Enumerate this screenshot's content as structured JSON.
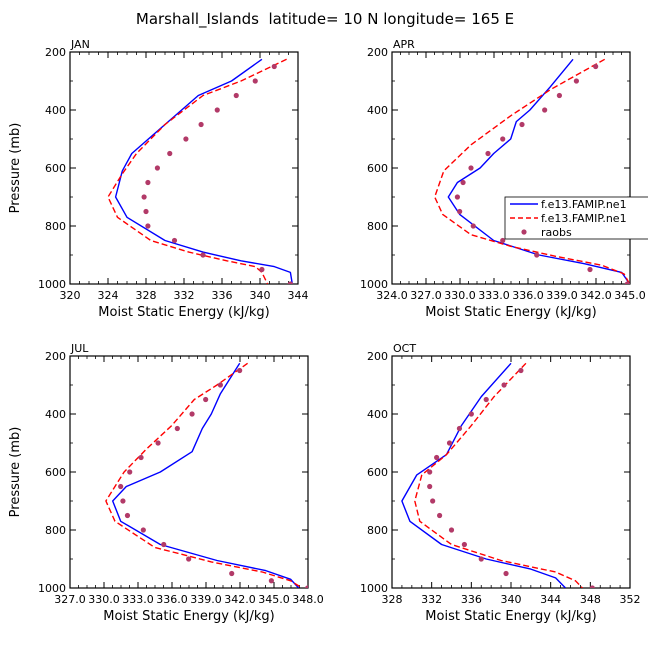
{
  "page_title": "Marshall_Islands  latitude= 10 N longitude= 165 E",
  "colors": {
    "model1": "#0000ff",
    "model2": "#ff0000",
    "obs": "#b23a68",
    "axis": "#000000"
  },
  "legend": {
    "entries": [
      {
        "label": "f.e13.FAMIP.ne1",
        "style": "solid",
        "color": "#0000ff"
      },
      {
        "label": "f.e13.FAMIP.ne1",
        "style": "dashed",
        "color": "#ff0000"
      },
      {
        "label": "raobs",
        "style": "marker",
        "color": "#b23a68"
      }
    ]
  },
  "chart_data": [
    {
      "type": "line",
      "title": "JAN",
      "xlabel": "Moist Static Energy (kJ/kg)",
      "ylabel": "Pressure (mb)",
      "xlim": [
        320,
        344
      ],
      "ylim": [
        1000,
        200
      ],
      "xticks": [
        320,
        324,
        328,
        332,
        336,
        340,
        344
      ],
      "xtick_labels": [
        "320",
        "324",
        "328",
        "332",
        "336",
        "340",
        "344"
      ],
      "yticks": [
        200,
        400,
        600,
        800,
        1000
      ],
      "ytick_labels": [
        "200",
        "400",
        "600",
        "800",
        "1000"
      ],
      "series": [
        {
          "name": "f.e13.FAMIP.ne1",
          "style": "solid",
          "color": "#0000ff",
          "x": [
            340.2,
            337.0,
            333.5,
            330.0,
            326.5,
            325.5,
            324.8,
            326.0,
            330.0,
            334.0,
            338.0,
            341.5,
            343.2,
            343.4
          ],
          "y": [
            225,
            300,
            350,
            450,
            550,
            610,
            700,
            770,
            850,
            890,
            920,
            940,
            960,
            1000
          ]
        },
        {
          "name": "f.e13.FAMIP.ne1",
          "style": "dashed",
          "color": "#ff0000",
          "x": [
            342.8,
            338.0,
            334.0,
            330.0,
            327.0,
            325.5,
            324.0,
            325.0,
            328.5,
            332.5,
            336.5,
            339.5,
            340.2,
            340.8
          ],
          "y": [
            225,
            300,
            350,
            450,
            550,
            620,
            700,
            770,
            850,
            890,
            920,
            940,
            960,
            1000
          ]
        },
        {
          "name": "raobs",
          "style": "marker",
          "color": "#b23a68",
          "x": [
            341.5,
            339.5,
            337.5,
            335.5,
            333.8,
            332.2,
            330.5,
            329.2,
            328.2,
            327.8,
            328.0,
            328.2,
            331.0,
            334.0,
            340.2,
            343.2
          ],
          "y": [
            250,
            300,
            350,
            400,
            450,
            500,
            550,
            600,
            650,
            700,
            750,
            800,
            850,
            900,
            950,
            1000
          ]
        }
      ]
    },
    {
      "type": "line",
      "title": "APR",
      "xlabel": "Moist Static Energy (kJ/kg)",
      "ylabel": "",
      "xlim": [
        324.03,
        345.03
      ],
      "ylim": [
        1000,
        200
      ],
      "xticks": [
        324.03,
        327.03,
        330.03,
        333.03,
        336.03,
        339.03,
        342.03,
        345.03
      ],
      "xtick_labels": [
        "324.0",
        "327.0",
        "330.0",
        "333.0",
        "336.0",
        "339.0",
        "342.0",
        "345.0"
      ],
      "yticks": [
        200,
        400,
        600,
        800,
        1000
      ],
      "ytick_labels": [
        "200",
        "400",
        "600",
        "800",
        "1000"
      ],
      "series": [
        {
          "name": "f.e13.FAMIP.ne1",
          "style": "solid",
          "color": "#0000ff",
          "x": [
            340.0,
            338.0,
            336.2,
            335.0,
            334.5,
            333.0,
            331.8,
            329.8,
            329.0,
            330.0,
            333.0,
            337.0,
            341.0,
            344.3,
            345.0
          ],
          "y": [
            225,
            320,
            400,
            440,
            500,
            550,
            600,
            650,
            700,
            760,
            850,
            900,
            930,
            960,
            1000
          ]
        },
        {
          "name": "f.e13.FAMIP.ne1",
          "style": "dashed",
          "color": "#ff0000",
          "x": [
            342.8,
            338.0,
            334.5,
            331.0,
            328.6,
            327.8,
            328.5,
            331.0,
            334.5,
            338.5,
            342.5,
            344.5,
            345.0
          ],
          "y": [
            225,
            330,
            420,
            520,
            610,
            700,
            760,
            830,
            870,
            905,
            935,
            965,
            1000
          ]
        },
        {
          "name": "raobs",
          "style": "marker",
          "color": "#b23a68",
          "x": [
            342.0,
            340.3,
            338.8,
            337.5,
            335.5,
            333.8,
            332.5,
            331.0,
            330.3,
            329.8,
            330.0,
            331.2,
            333.8,
            336.8,
            341.5,
            344.8
          ],
          "y": [
            250,
            300,
            350,
            400,
            450,
            500,
            550,
            600,
            650,
            700,
            750,
            800,
            850,
            900,
            950,
            1000
          ]
        }
      ]
    },
    {
      "type": "line",
      "title": "JUL",
      "xlabel": "Moist Static Energy (kJ/kg)",
      "ylabel": "Pressure (mb)",
      "xlim": [
        327.03,
        348.03
      ],
      "ylim": [
        1000,
        200
      ],
      "xticks": [
        327.03,
        330.03,
        333.03,
        336.03,
        339.03,
        342.03,
        345.03,
        348.03
      ],
      "xtick_labels": [
        "327.0",
        "330.0",
        "333.0",
        "336.0",
        "339.0",
        "342.0",
        "345.0",
        "348.0"
      ],
      "yticks": [
        200,
        400,
        600,
        800,
        1000
      ],
      "ytick_labels": [
        "200",
        "400",
        "600",
        "800",
        "1000"
      ],
      "series": [
        {
          "name": "f.e13.FAMIP.ne1",
          "style": "solid",
          "color": "#0000ff",
          "x": [
            342.0,
            340.3,
            339.5,
            338.7,
            337.8,
            335.0,
            332.0,
            330.8,
            331.5,
            335.0,
            340.0,
            344.3,
            346.5,
            347.2
          ],
          "y": [
            225,
            330,
            400,
            450,
            530,
            600,
            650,
            700,
            770,
            850,
            905,
            940,
            970,
            1000
          ]
        },
        {
          "name": "f.e13.FAMIP.ne1",
          "style": "dashed",
          "color": "#ff0000",
          "x": [
            342.7,
            340.0,
            338.0,
            336.0,
            333.8,
            331.8,
            330.2,
            331.0,
            334.5,
            339.5,
            344.0,
            346.5,
            347.5
          ],
          "y": [
            225,
            300,
            350,
            440,
            520,
            600,
            700,
            770,
            860,
            910,
            945,
            975,
            1000
          ]
        },
        {
          "name": "raobs",
          "style": "marker",
          "color": "#b23a68",
          "x": [
            342.0,
            340.3,
            339.0,
            337.8,
            336.5,
            334.8,
            333.3,
            332.3,
            331.5,
            331.7,
            332.1,
            333.5,
            335.3,
            337.5,
            341.3,
            344.8,
            348.0
          ],
          "y": [
            250,
            300,
            350,
            400,
            450,
            500,
            550,
            600,
            650,
            700,
            750,
            800,
            850,
            900,
            950,
            975,
            1000
          ]
        }
      ]
    },
    {
      "type": "line",
      "title": "OCT",
      "xlabel": "Moist Static Energy (kJ/kg)",
      "ylabel": "",
      "xlim": [
        328,
        352
      ],
      "ylim": [
        1000,
        200
      ],
      "xticks": [
        328,
        332,
        336,
        340,
        344,
        348,
        352
      ],
      "xtick_labels": [
        "328",
        "332",
        "336",
        "340",
        "344",
        "348",
        "352"
      ],
      "yticks": [
        200,
        400,
        600,
        800,
        1000
      ],
      "ytick_labels": [
        "200",
        "400",
        "600",
        "800",
        "1000"
      ],
      "series": [
        {
          "name": "f.e13.FAMIP.ne1",
          "style": "solid",
          "color": "#0000ff",
          "x": [
            340.0,
            337.0,
            335.0,
            333.5,
            330.5,
            329.0,
            329.8,
            333.0,
            337.5,
            342.0,
            344.5,
            345.5
          ],
          "y": [
            225,
            340,
            440,
            540,
            610,
            700,
            770,
            850,
            900,
            935,
            965,
            1000
          ]
        },
        {
          "name": "f.e13.FAMIP.ne1",
          "style": "dashed",
          "color": "#ff0000",
          "x": [
            341.5,
            338.3,
            336.0,
            333.5,
            331.0,
            330.3,
            330.8,
            334.0,
            339.0,
            344.5,
            346.5,
            347.2
          ],
          "y": [
            225,
            340,
            440,
            540,
            610,
            700,
            770,
            850,
            905,
            945,
            975,
            1000
          ]
        },
        {
          "name": "raobs",
          "style": "marker",
          "color": "#b23a68",
          "x": [
            341.0,
            339.3,
            337.5,
            336.0,
            334.8,
            333.8,
            332.5,
            331.8,
            331.8,
            332.1,
            332.8,
            334.0,
            335.3,
            337.0,
            339.5,
            348.2
          ],
          "y": [
            250,
            300,
            350,
            400,
            450,
            500,
            550,
            600,
            650,
            700,
            750,
            800,
            850,
            900,
            950,
            1000
          ]
        }
      ]
    }
  ]
}
